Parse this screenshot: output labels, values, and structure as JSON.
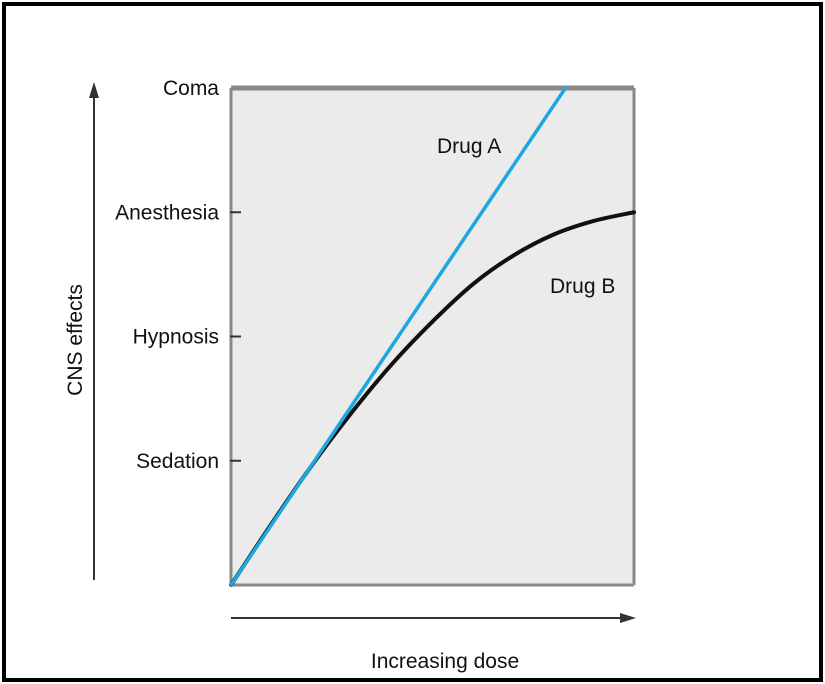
{
  "chart_data": {
    "type": "line",
    "title": "",
    "xlabel": "Increasing dose",
    "ylabel": "CNS effects",
    "xlim": [
      0,
      1
    ],
    "ylim": [
      0,
      4
    ],
    "y_ticks": [
      {
        "value": 1,
        "label": "Sedation"
      },
      {
        "value": 2,
        "label": "Hypnosis"
      },
      {
        "value": 3,
        "label": "Anesthesia"
      },
      {
        "value": 4,
        "label": "Coma"
      }
    ],
    "grid": false,
    "series": [
      {
        "name": "Drug A",
        "color": "#1ea7e1",
        "x": [
          0,
          0.83
        ],
        "y": [
          0,
          4
        ]
      },
      {
        "name": "Drug B",
        "color": "#111111",
        "x": [
          0,
          0.1,
          0.2,
          0.3,
          0.4,
          0.5,
          0.6,
          0.7,
          0.8,
          0.9,
          1.0
        ],
        "y": [
          0,
          0.49,
          0.96,
          1.39,
          1.78,
          2.12,
          2.42,
          2.65,
          2.82,
          2.93,
          3.0
        ]
      }
    ],
    "plot_background": "#ebebeb",
    "frame_color": "#888888"
  }
}
